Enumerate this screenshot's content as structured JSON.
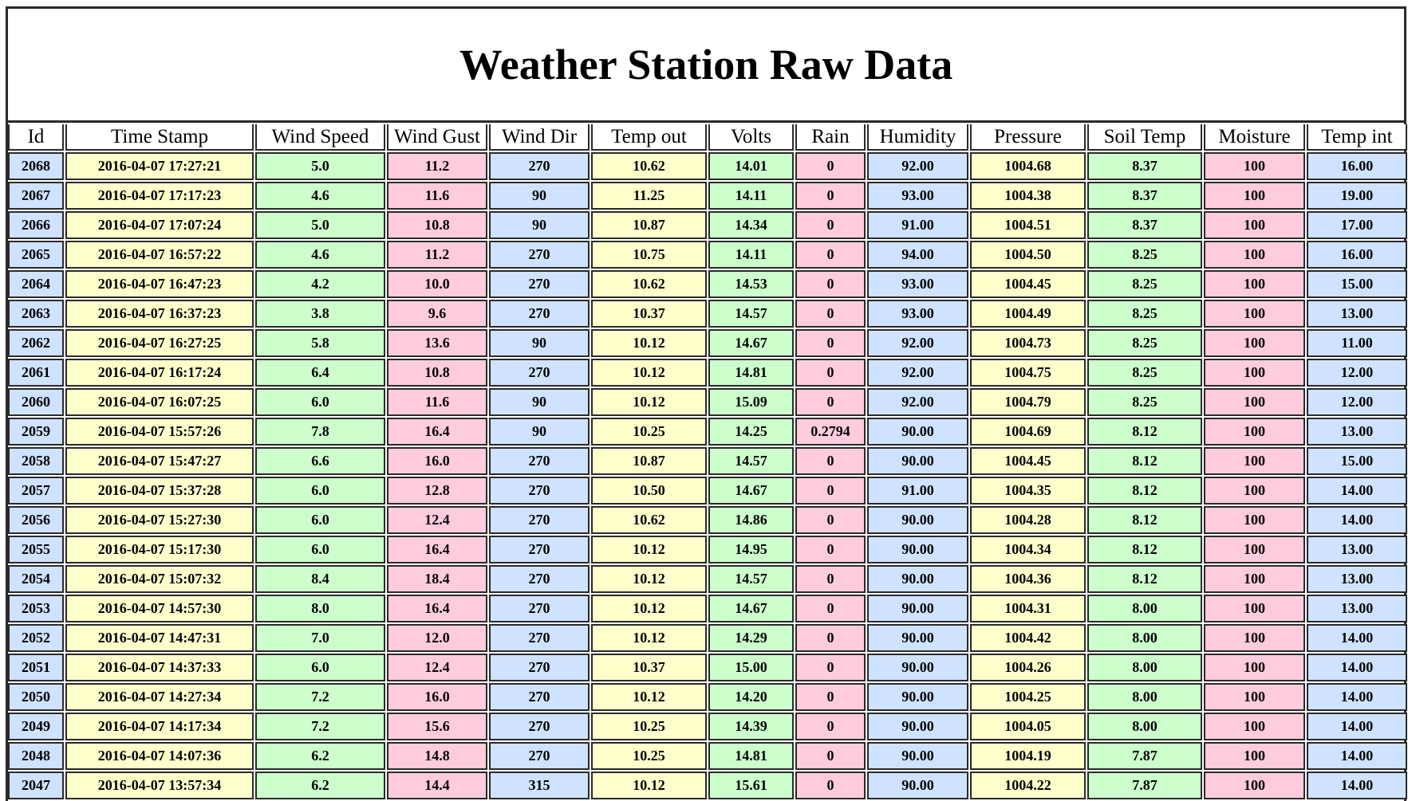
{
  "title": "Weather Station Raw Data",
  "table": {
    "columns": [
      "Id",
      "Time Stamp",
      "Wind Speed",
      "Wind Gust",
      "Wind Dir",
      "Temp out",
      "Volts",
      "Rain",
      "Humidity",
      "Pressure",
      "Soil Temp",
      "Moisture",
      "Temp int"
    ],
    "rows": [
      [
        "2068",
        "2016-04-07 17:27:21",
        "5.0",
        "11.2",
        "270",
        "10.62",
        "14.01",
        "0",
        "92.00",
        "1004.68",
        "8.37",
        "100",
        "16.00"
      ],
      [
        "2067",
        "2016-04-07 17:17:23",
        "4.6",
        "11.6",
        "90",
        "11.25",
        "14.11",
        "0",
        "93.00",
        "1004.38",
        "8.37",
        "100",
        "19.00"
      ],
      [
        "2066",
        "2016-04-07 17:07:24",
        "5.0",
        "10.8",
        "90",
        "10.87",
        "14.34",
        "0",
        "91.00",
        "1004.51",
        "8.37",
        "100",
        "17.00"
      ],
      [
        "2065",
        "2016-04-07 16:57:22",
        "4.6",
        "11.2",
        "270",
        "10.75",
        "14.11",
        "0",
        "94.00",
        "1004.50",
        "8.25",
        "100",
        "16.00"
      ],
      [
        "2064",
        "2016-04-07 16:47:23",
        "4.2",
        "10.0",
        "270",
        "10.62",
        "14.53",
        "0",
        "93.00",
        "1004.45",
        "8.25",
        "100",
        "15.00"
      ],
      [
        "2063",
        "2016-04-07 16:37:23",
        "3.8",
        "9.6",
        "270",
        "10.37",
        "14.57",
        "0",
        "93.00",
        "1004.49",
        "8.25",
        "100",
        "13.00"
      ],
      [
        "2062",
        "2016-04-07 16:27:25",
        "5.8",
        "13.6",
        "90",
        "10.12",
        "14.67",
        "0",
        "92.00",
        "1004.73",
        "8.25",
        "100",
        "11.00"
      ],
      [
        "2061",
        "2016-04-07 16:17:24",
        "6.4",
        "10.8",
        "270",
        "10.12",
        "14.81",
        "0",
        "92.00",
        "1004.75",
        "8.25",
        "100",
        "12.00"
      ],
      [
        "2060",
        "2016-04-07 16:07:25",
        "6.0",
        "11.6",
        "90",
        "10.12",
        "15.09",
        "0",
        "92.00",
        "1004.79",
        "8.25",
        "100",
        "12.00"
      ],
      [
        "2059",
        "2016-04-07 15:57:26",
        "7.8",
        "16.4",
        "90",
        "10.25",
        "14.25",
        "0.2794",
        "90.00",
        "1004.69",
        "8.12",
        "100",
        "13.00"
      ],
      [
        "2058",
        "2016-04-07 15:47:27",
        "6.6",
        "16.0",
        "270",
        "10.87",
        "14.57",
        "0",
        "90.00",
        "1004.45",
        "8.12",
        "100",
        "15.00"
      ],
      [
        "2057",
        "2016-04-07 15:37:28",
        "6.0",
        "12.8",
        "270",
        "10.50",
        "14.67",
        "0",
        "91.00",
        "1004.35",
        "8.12",
        "100",
        "14.00"
      ],
      [
        "2056",
        "2016-04-07 15:27:30",
        "6.0",
        "12.4",
        "270",
        "10.62",
        "14.86",
        "0",
        "90.00",
        "1004.28",
        "8.12",
        "100",
        "14.00"
      ],
      [
        "2055",
        "2016-04-07 15:17:30",
        "6.0",
        "16.4",
        "270",
        "10.12",
        "14.95",
        "0",
        "90.00",
        "1004.34",
        "8.12",
        "100",
        "13.00"
      ],
      [
        "2054",
        "2016-04-07 15:07:32",
        "8.4",
        "18.4",
        "270",
        "10.12",
        "14.57",
        "0",
        "90.00",
        "1004.36",
        "8.12",
        "100",
        "13.00"
      ],
      [
        "2053",
        "2016-04-07 14:57:30",
        "8.0",
        "16.4",
        "270",
        "10.12",
        "14.67",
        "0",
        "90.00",
        "1004.31",
        "8.00",
        "100",
        "13.00"
      ],
      [
        "2052",
        "2016-04-07 14:47:31",
        "7.0",
        "12.0",
        "270",
        "10.12",
        "14.29",
        "0",
        "90.00",
        "1004.42",
        "8.00",
        "100",
        "14.00"
      ],
      [
        "2051",
        "2016-04-07 14:37:33",
        "6.0",
        "12.4",
        "270",
        "10.37",
        "15.00",
        "0",
        "90.00",
        "1004.26",
        "8.00",
        "100",
        "14.00"
      ],
      [
        "2050",
        "2016-04-07 14:27:34",
        "7.2",
        "16.0",
        "270",
        "10.12",
        "14.20",
        "0",
        "90.00",
        "1004.25",
        "8.00",
        "100",
        "14.00"
      ],
      [
        "2049",
        "2016-04-07 14:17:34",
        "7.2",
        "15.6",
        "270",
        "10.25",
        "14.39",
        "0",
        "90.00",
        "1004.05",
        "8.00",
        "100",
        "14.00"
      ],
      [
        "2048",
        "2016-04-07 14:07:36",
        "6.2",
        "14.8",
        "270",
        "10.25",
        "14.81",
        "0",
        "90.00",
        "1004.19",
        "7.87",
        "100",
        "14.00"
      ],
      [
        "2047",
        "2016-04-07 13:57:34",
        "6.2",
        "14.4",
        "315",
        "10.12",
        "15.61",
        "0",
        "90.00",
        "1004.22",
        "7.87",
        "100",
        "14.00"
      ]
    ]
  }
}
